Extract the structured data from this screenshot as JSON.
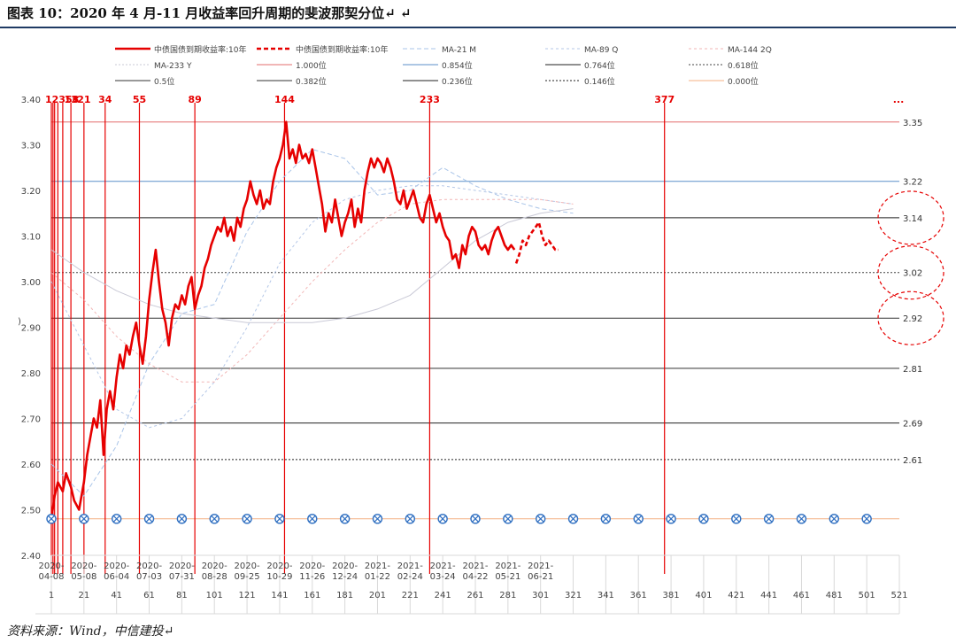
{
  "title": "图表 10：2020 年 4 月-11 月收益率回升周期的斐波那契分位↵ ↵",
  "source": "资料来源：Wind，中信建投↵",
  "colors": {
    "main": "#e60000",
    "fib_lines": "#e06060",
    "axis_text": "#444444",
    "rule": "#1f3b64"
  },
  "chart_data": {
    "type": "line",
    "xlabel": "",
    "ylabel": "",
    "ylim": [
      2.4,
      3.4
    ],
    "xlim": [
      1,
      521
    ],
    "grid": false,
    "legend_position": "top",
    "y_ticks": [
      "2.40",
      "2.50",
      "2.60",
      "2.70",
      "2.80",
      "2.90",
      "3.00",
      "3.10",
      "3.20",
      "3.30",
      "3.40"
    ],
    "x_index_ticks": [
      1,
      21,
      41,
      61,
      81,
      101,
      121,
      141,
      161,
      181,
      201,
      221,
      241,
      261,
      281,
      301,
      321,
      341,
      361,
      381,
      401,
      421,
      441,
      461,
      481,
      501,
      521
    ],
    "x_date_ticks": [
      {
        "x": 1,
        "l1": "2020-",
        "l2": "04-08"
      },
      {
        "x": 21,
        "l1": "2020-",
        "l2": "05-08"
      },
      {
        "x": 41,
        "l1": "2020-",
        "l2": "06-04"
      },
      {
        "x": 61,
        "l1": "2020-",
        "l2": "07-03"
      },
      {
        "x": 81,
        "l1": "2020-",
        "l2": "07-31"
      },
      {
        "x": 101,
        "l1": "2020-",
        "l2": "08-28"
      },
      {
        "x": 121,
        "l1": "2020-",
        "l2": "09-25"
      },
      {
        "x": 141,
        "l1": "2020-",
        "l2": "10-29"
      },
      {
        "x": 161,
        "l1": "2020-",
        "l2": "11-26"
      },
      {
        "x": 181,
        "l1": "2020-",
        "l2": "12-24"
      },
      {
        "x": 201,
        "l1": "2021-",
        "l2": "01-22"
      },
      {
        "x": 221,
        "l1": "2021-",
        "l2": "02-24"
      },
      {
        "x": 241,
        "l1": "2021-",
        "l2": "03-24"
      },
      {
        "x": 261,
        "l1": "2021-",
        "l2": "04-22"
      },
      {
        "x": 281,
        "l1": "2021-",
        "l2": "05-21"
      },
      {
        "x": 301,
        "l1": "2021-",
        "l2": "06-21"
      }
    ],
    "fib_time_lines": [
      {
        "x": 1,
        "label": "1"
      },
      {
        "x": 2,
        "label": "2"
      },
      {
        "x": 3,
        "label": "3"
      },
      {
        "x": 5,
        "label": "5"
      },
      {
        "x": 8,
        "label": "8"
      },
      {
        "x": 13,
        "label": "13"
      },
      {
        "x": 21,
        "label": "21"
      },
      {
        "x": 34,
        "label": "34"
      },
      {
        "x": 55,
        "label": "55"
      },
      {
        "x": 89,
        "label": "89"
      },
      {
        "x": 144,
        "label": "144"
      },
      {
        "x": 233,
        "label": "233"
      },
      {
        "x": 377,
        "label": "377"
      }
    ],
    "fib_time_more_label": "...",
    "fib_time_header_text": "12358",
    "levels": [
      {
        "name": "1.000位",
        "value": 3.35,
        "label": "3.35",
        "color": "#e36c6c",
        "style": "solid"
      },
      {
        "name": "0.854位",
        "value": 3.22,
        "label": "3.22",
        "color": "#5b8fc9",
        "style": "solid"
      },
      {
        "name": "0.764位",
        "value": 3.14,
        "label": "3.14",
        "color": "#222222",
        "style": "solid"
      },
      {
        "name": "0.618位",
        "value": 3.02,
        "label": "3.02",
        "color": "#444444",
        "style": "dotted"
      },
      {
        "name": "0.5位",
        "value": 2.92,
        "label": "2.92",
        "color": "#333333",
        "style": "solid"
      },
      {
        "name": "0.382位",
        "value": 2.81,
        "label": "2.81",
        "color": "#333333",
        "style": "solid"
      },
      {
        "name": "0.236位",
        "value": 2.69,
        "label": "2.69",
        "color": "#222222",
        "style": "solid"
      },
      {
        "name": "0.146位",
        "value": 2.61,
        "label": "2.61",
        "color": "#222222",
        "style": "dotted"
      },
      {
        "name": "0.000位",
        "value": 2.48,
        "label": "",
        "color": "#f4b183",
        "style": "solid"
      }
    ],
    "circled_levels": [
      "3.14",
      "3.02",
      "2.92"
    ],
    "marker_row": {
      "y": 2.48,
      "x": [
        1,
        21,
        41,
        61,
        81,
        101,
        121,
        141,
        161,
        181,
        201,
        221,
        241,
        261,
        281,
        301,
        321,
        341,
        361,
        381,
        401,
        421,
        441,
        461,
        481,
        501
      ]
    },
    "series": [
      {
        "name": "中债国债到期收益率:10年",
        "style": "solid",
        "x": [
          1,
          3,
          5,
          8,
          10,
          13,
          15,
          18,
          21,
          23,
          25,
          27,
          29,
          31,
          33,
          35,
          37,
          39,
          41,
          43,
          45,
          47,
          49,
          51,
          53,
          55,
          57,
          59,
          61,
          63,
          65,
          67,
          69,
          71,
          73,
          75,
          77,
          79,
          81,
          83,
          85,
          87,
          89,
          91,
          93,
          95,
          97,
          99,
          101,
          103,
          105,
          107,
          109,
          111,
          113,
          115,
          117,
          119,
          121,
          123,
          125,
          127,
          129,
          131,
          133,
          135,
          137,
          139,
          141,
          143,
          145,
          147,
          149,
          151,
          153,
          155,
          157,
          159,
          161,
          163,
          165,
          167,
          169,
          171,
          173,
          175,
          177,
          179,
          181,
          183,
          185,
          187,
          189,
          191,
          193,
          195,
          197,
          199,
          201,
          203,
          205,
          207,
          209,
          211,
          213,
          215,
          217,
          219,
          221,
          223,
          225,
          227,
          229,
          231,
          233,
          235,
          237,
          239,
          241,
          243,
          245,
          247,
          249,
          251,
          253,
          255,
          257,
          259,
          261,
          263,
          265,
          267,
          269,
          271,
          273,
          275,
          277,
          279,
          281,
          283,
          285
        ],
        "y": [
          2.48,
          2.53,
          2.56,
          2.54,
          2.58,
          2.55,
          2.52,
          2.5,
          2.56,
          2.62,
          2.66,
          2.7,
          2.68,
          2.74,
          2.62,
          2.72,
          2.76,
          2.72,
          2.79,
          2.84,
          2.81,
          2.86,
          2.84,
          2.88,
          2.91,
          2.86,
          2.82,
          2.88,
          2.96,
          3.02,
          3.07,
          3.0,
          2.94,
          2.91,
          2.86,
          2.92,
          2.95,
          2.94,
          2.97,
          2.95,
          2.99,
          3.01,
          2.94,
          2.97,
          2.99,
          3.03,
          3.05,
          3.08,
          3.1,
          3.12,
          3.11,
          3.14,
          3.1,
          3.12,
          3.09,
          3.14,
          3.12,
          3.16,
          3.18,
          3.22,
          3.19,
          3.17,
          3.2,
          3.16,
          3.18,
          3.17,
          3.22,
          3.25,
          3.27,
          3.3,
          3.35,
          3.27,
          3.29,
          3.26,
          3.3,
          3.27,
          3.28,
          3.26,
          3.29,
          3.25,
          3.21,
          3.17,
          3.11,
          3.15,
          3.13,
          3.18,
          3.14,
          3.1,
          3.13,
          3.15,
          3.18,
          3.12,
          3.16,
          3.13,
          3.2,
          3.24,
          3.27,
          3.25,
          3.27,
          3.26,
          3.24,
          3.27,
          3.25,
          3.22,
          3.18,
          3.17,
          3.2,
          3.16,
          3.18,
          3.2,
          3.17,
          3.14,
          3.13,
          3.17,
          3.19,
          3.16,
          3.13,
          3.15,
          3.12,
          3.1,
          3.09,
          3.05,
          3.06,
          3.03,
          3.08,
          3.06,
          3.1,
          3.12,
          3.11,
          3.08,
          3.07,
          3.08,
          3.06,
          3.09,
          3.11,
          3.12,
          3.1,
          3.08,
          3.07,
          3.08,
          3.07
        ]
      },
      {
        "name": "中债国债到期收益率:10年",
        "style": "dashed",
        "x": [
          286,
          288,
          290,
          292,
          294,
          296,
          298,
          300,
          302,
          304,
          306,
          308,
          310,
          312
        ],
        "y": [
          3.04,
          3.06,
          3.09,
          3.08,
          3.1,
          3.11,
          3.12,
          3.13,
          3.1,
          3.08,
          3.09,
          3.08,
          3.07,
          3.07
        ]
      },
      {
        "name": "MA-21 M",
        "style": "ma",
        "color": "#a9c4e8",
        "dash": "5,3",
        "x": [
          1,
          21,
          41,
          61,
          81,
          101,
          121,
          141,
          161,
          181,
          201,
          221,
          241,
          261,
          281,
          301,
          321
        ],
        "y": [
          2.6,
          2.53,
          2.64,
          2.82,
          2.93,
          2.95,
          3.11,
          3.22,
          3.29,
          3.27,
          3.19,
          3.2,
          3.25,
          3.21,
          3.18,
          3.16,
          3.15
        ]
      },
      {
        "name": "MA-89 Q",
        "style": "ma",
        "color": "#b4c7e7",
        "dash": "3,3",
        "x": [
          1,
          21,
          41,
          61,
          81,
          101,
          121,
          141,
          161,
          181,
          201,
          221,
          241,
          261,
          281,
          301,
          321
        ],
        "y": [
          3.0,
          2.86,
          2.72,
          2.68,
          2.7,
          2.78,
          2.9,
          3.04,
          3.13,
          3.18,
          3.2,
          3.21,
          3.21,
          3.2,
          3.19,
          3.18,
          3.17
        ]
      },
      {
        "name": "MA-144 2Q",
        "style": "ma",
        "color": "#f2b6b6",
        "dash": "3,3",
        "x": [
          1,
          21,
          41,
          61,
          81,
          101,
          121,
          141,
          161,
          181,
          201,
          221,
          241,
          261,
          281,
          301,
          321
        ],
        "y": [
          3.02,
          2.96,
          2.88,
          2.82,
          2.78,
          2.78,
          2.84,
          2.92,
          3.0,
          3.07,
          3.13,
          3.17,
          3.18,
          3.18,
          3.18,
          3.18,
          3.17
        ]
      },
      {
        "name": "MA-233 Y",
        "style": "ma",
        "color": "#c9c9d6",
        "dash": "",
        "x": [
          1,
          21,
          41,
          61,
          81,
          101,
          121,
          141,
          161,
          181,
          201,
          221,
          241,
          261,
          281,
          301,
          321
        ],
        "y": [
          3.07,
          3.02,
          2.98,
          2.95,
          2.93,
          2.92,
          2.91,
          2.91,
          2.91,
          2.92,
          2.94,
          2.97,
          3.03,
          3.09,
          3.13,
          3.15,
          3.16
        ]
      }
    ],
    "legend": [
      {
        "label": "中债国债到期收益率:10年",
        "kind": "solid-red"
      },
      {
        "label": "中债国债到期收益率:10年",
        "kind": "dash-red"
      },
      {
        "label": "MA-21 M",
        "kind": "ma21"
      },
      {
        "label": "MA-89 Q",
        "kind": "ma89"
      },
      {
        "label": "MA-144 2Q",
        "kind": "ma144"
      },
      {
        "label": "MA-233 Y",
        "kind": "ma233"
      },
      {
        "label": "1.000位",
        "kind": "lvl100"
      },
      {
        "label": "0.854位",
        "kind": "lvl854"
      },
      {
        "label": "0.764位",
        "kind": "lvl764"
      },
      {
        "label": "0.618位",
        "kind": "lvl618"
      },
      {
        "label": "0.5位",
        "kind": "lvl500"
      },
      {
        "label": "0.382位",
        "kind": "lvl382"
      },
      {
        "label": "0.236位",
        "kind": "lvl236"
      },
      {
        "label": "0.146位",
        "kind": "lvl146"
      },
      {
        "label": "0.000位",
        "kind": "lvl000"
      }
    ]
  }
}
